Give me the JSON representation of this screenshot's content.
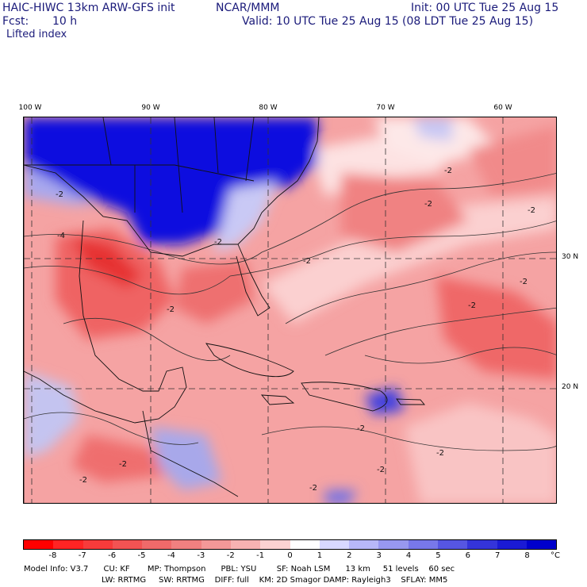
{
  "header": {
    "model": "HAIC-HIWC 13km ARW-GFS init",
    "org": "NCAR/MMM",
    "init": "Init: 00 UTC Tue 25 Aug 15",
    "fcst_label": "Fcst:",
    "fcst_value": "10 h",
    "valid": "Valid: 10 UTC Tue 25 Aug 15 (08 LDT Tue 25 Aug 15)",
    "field": "Lifted index"
  },
  "axes": {
    "lon_labels": [
      "100 W",
      "90 W",
      "80 W",
      "70 W",
      "60 W"
    ],
    "lat_labels": [
      "30 N",
      "20 N"
    ]
  },
  "map": {
    "contour_labels": [
      "-2",
      "-2",
      "-2",
      "-2",
      "-2",
      "-2",
      "-2",
      "-2",
      "-4",
      "-2",
      "-2",
      "-2",
      "-2",
      "-2",
      "-2",
      "-2"
    ]
  },
  "colorbar": {
    "ticks": [
      "-8",
      "-7",
      "-6",
      "-5",
      "-4",
      "-3",
      "-2",
      "-1",
      "0",
      "1",
      "2",
      "3",
      "4",
      "5",
      "6",
      "7",
      "8"
    ],
    "unit": "°C",
    "colors": [
      "#ff0000",
      "#ff2424",
      "#f73b3b",
      "#f25353",
      "#ef6a6a",
      "#f08080",
      "#f39898",
      "#f7b2b2",
      "#fbd2d2",
      "#ffffff",
      "#d8d8ff",
      "#b8b8f8",
      "#9898f0",
      "#7878ea",
      "#5656e2",
      "#3434da",
      "#1a1ad4",
      "#0000cc"
    ]
  },
  "model_info": {
    "line1": "Model Info: V3.7      CU: KF       MP: Thompson      PBL: YSU        SF: Noah LSM      13 km     51 levels    60 sec",
    "line2": "LW: RRTMG     SW: RRTMG    DIFF: full    KM: 2D Smagor DAMP: Rayleigh3    SFLAY: MM5"
  }
}
